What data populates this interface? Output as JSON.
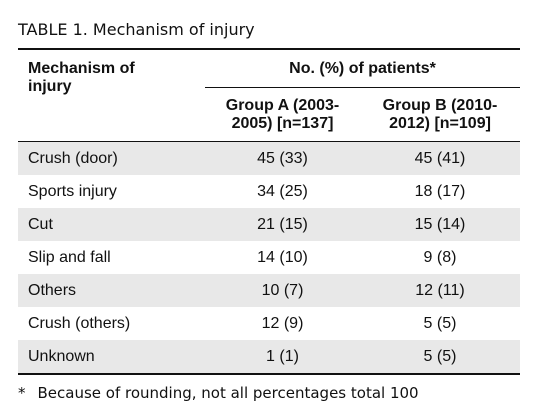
{
  "title": "TABLE 1. Mechanism of injury",
  "table": {
    "header": {
      "first_column": [
        "Mechanism of",
        "injury"
      ],
      "group_heading": "No. (%) of patients*",
      "columns": [
        [
          "Group A (2003-",
          "2005) [n=137]"
        ],
        [
          "Group B (2010-",
          "2012) [n=109]"
        ]
      ]
    },
    "rows": [
      [
        "Crush (door)",
        "45 (33)",
        "45 (41)"
      ],
      [
        "Sports injury",
        "34 (25)",
        "18 (17)"
      ],
      [
        "Cut",
        "21 (15)",
        "15 (14)"
      ],
      [
        "Slip and fall",
        "14 (10)",
        "9 (8)"
      ],
      [
        "Others",
        "10 (7)",
        "12 (11)"
      ],
      [
        "Crush (others)",
        "12 (9)",
        "5 (5)"
      ],
      [
        "Unknown",
        "1 (1)",
        "5 (5)"
      ]
    ]
  },
  "footnote": {
    "mark": "*",
    "text": "Because of rounding, not all percentages total 100"
  }
}
